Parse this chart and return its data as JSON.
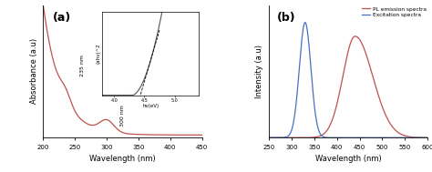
{
  "panel_a": {
    "label": "(a)",
    "xlabel": "Wavelength (nm)",
    "ylabel": "Absorbance (a.u)",
    "xlim": [
      200,
      450
    ],
    "ylim": [
      0,
      1.0
    ],
    "color": "#c0504d",
    "annotation_235": "235 nm",
    "annotation_300": "300 nm",
    "inset": {
      "xlabel": "hv(eV)",
      "ylabel": "(ahv)^2",
      "xlim": [
        3.8,
        5.4
      ],
      "ylim": [
        0,
        6
      ],
      "color": "#555555",
      "bg": 4.3
    }
  },
  "panel_b": {
    "label": "(b)",
    "xlabel": "Wavelength (nm)",
    "ylabel": "Intensity (a.u)",
    "xlim": [
      250,
      600
    ],
    "emission_color": "#c0504d",
    "excitation_color": "#4472c4",
    "emission_label": "PL emission spectra",
    "excitation_label": "Excitation spectra",
    "emission_peak": 440,
    "emission_sigma_l": 38,
    "emission_sigma_r": 55,
    "excitation_peak": 330,
    "excitation_sigma": 18
  },
  "background_color": "#ffffff"
}
